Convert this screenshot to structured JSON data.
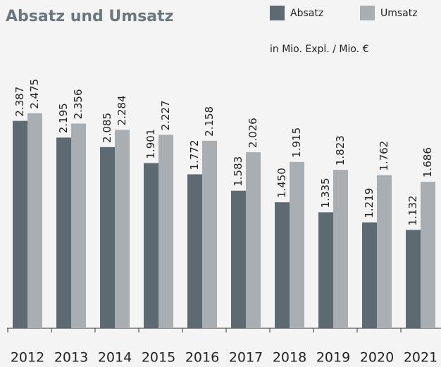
{
  "chart_data": {
    "type": "bar",
    "title": "Absatz und Umsatz",
    "subtitle": "in Mio. Expl. / Mio. €",
    "categories": [
      "2012",
      "2013",
      "2014",
      "2015",
      "2016",
      "2017",
      "2018",
      "2019",
      "2020",
      "2021"
    ],
    "series": [
      {
        "name": "Absatz",
        "color": "#5e6a72",
        "values": [
          2387,
          2195,
          2085,
          1901,
          1772,
          1583,
          1450,
          1335,
          1219,
          1132
        ],
        "value_labels": [
          "2.387",
          "2.195",
          "2.085",
          "1.901",
          "1.772",
          "1.583",
          "1.450",
          "1.335",
          "1.219",
          "1.132"
        ]
      },
      {
        "name": "Umsatz",
        "color": "#a9aeb2",
        "values": [
          2475,
          2356,
          2284,
          2227,
          2158,
          2026,
          1915,
          1823,
          1762,
          1686
        ],
        "value_labels": [
          "2.475",
          "2.356",
          "2.284",
          "2.227",
          "2.158",
          "2.026",
          "1.915",
          "1.823",
          "1.762",
          "1.686"
        ]
      }
    ],
    "ylim": [
      0,
      3000
    ]
  }
}
